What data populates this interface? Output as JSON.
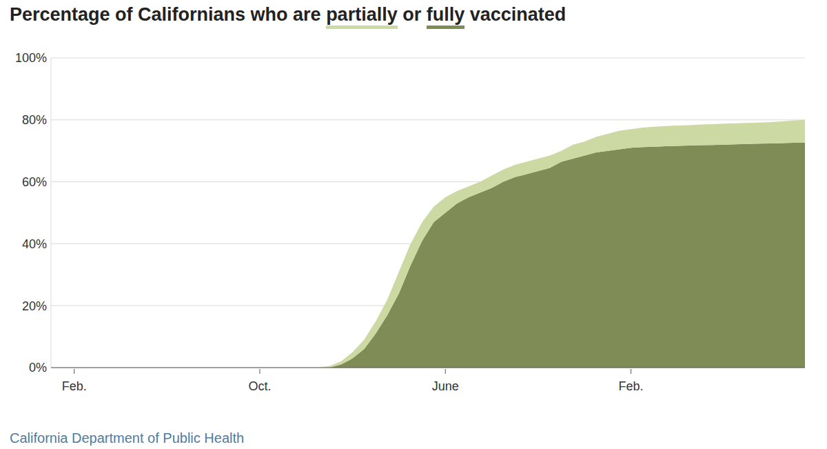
{
  "chart_data": {
    "type": "area",
    "title": "Percentage of Californians who are partially or fully vaccinated",
    "source": "California Department of Public Health",
    "stacked": true,
    "grid": true,
    "categories": [
      null,
      null,
      "Feb.",
      null,
      null,
      null,
      null,
      null,
      null,
      null,
      null,
      null,
      null,
      null,
      null,
      null,
      null,
      null,
      "Oct.",
      null,
      null,
      null,
      null,
      null,
      null,
      null,
      null,
      null,
      null,
      null,
      null,
      null,
      null,
      null,
      "June",
      null,
      null,
      null,
      null,
      null,
      null,
      null,
      null,
      null,
      null,
      null,
      null,
      null,
      null,
      null,
      "Feb.",
      null,
      null,
      null,
      null,
      null,
      null,
      null,
      null,
      null,
      null,
      null,
      null,
      null,
      null,
      null
    ],
    "series": [
      {
        "name": "fully",
        "color": "#808c55",
        "values": [
          0,
          0,
          0,
          0,
          0,
          0,
          0,
          0,
          0,
          0,
          0,
          0,
          0,
          0,
          0,
          0,
          0,
          0,
          0,
          0,
          0,
          0,
          0,
          0,
          0,
          1,
          3,
          6,
          11,
          17,
          24,
          33,
          41,
          47,
          50,
          53,
          55,
          56.5,
          58,
          60,
          61.5,
          62.5,
          63.5,
          64.5,
          66.5,
          67.5,
          68.5,
          69.5,
          70,
          70.5,
          71,
          71.2,
          71.3,
          71.5,
          71.6,
          71.7,
          71.8,
          71.9,
          72,
          72.1,
          72.2,
          72.3,
          72.4,
          72.5,
          72.6,
          72.6
        ]
      },
      {
        "name": "partially",
        "color": "#cdd9a2",
        "values": [
          0,
          0,
          0,
          0,
          0,
          0,
          0,
          0,
          0,
          0,
          0,
          0,
          0,
          0,
          0,
          0,
          0,
          0,
          0,
          0,
          0,
          0,
          0,
          0,
          0.5,
          1,
          2,
          3,
          4,
          5,
          7,
          7,
          6,
          5,
          5,
          4,
          3.5,
          3.5,
          4,
          4,
          4,
          4,
          4,
          4,
          3.5,
          4.5,
          4.5,
          5,
          5.5,
          6,
          6,
          6.3,
          6.5,
          6.5,
          6.6,
          6.6,
          6.7,
          6.7,
          6.8,
          6.8,
          6.8,
          6.8,
          6.9,
          7,
          7.2,
          7.4
        ]
      }
    ],
    "ylim": [
      0,
      100
    ],
    "yticks": [
      {
        "value": 0,
        "label": "0%"
      },
      {
        "value": 20,
        "label": "20%"
      },
      {
        "value": 40,
        "label": "40%"
      },
      {
        "value": 60,
        "label": "60%"
      },
      {
        "value": 80,
        "label": "80%"
      },
      {
        "value": 100,
        "label": "100%"
      }
    ]
  }
}
